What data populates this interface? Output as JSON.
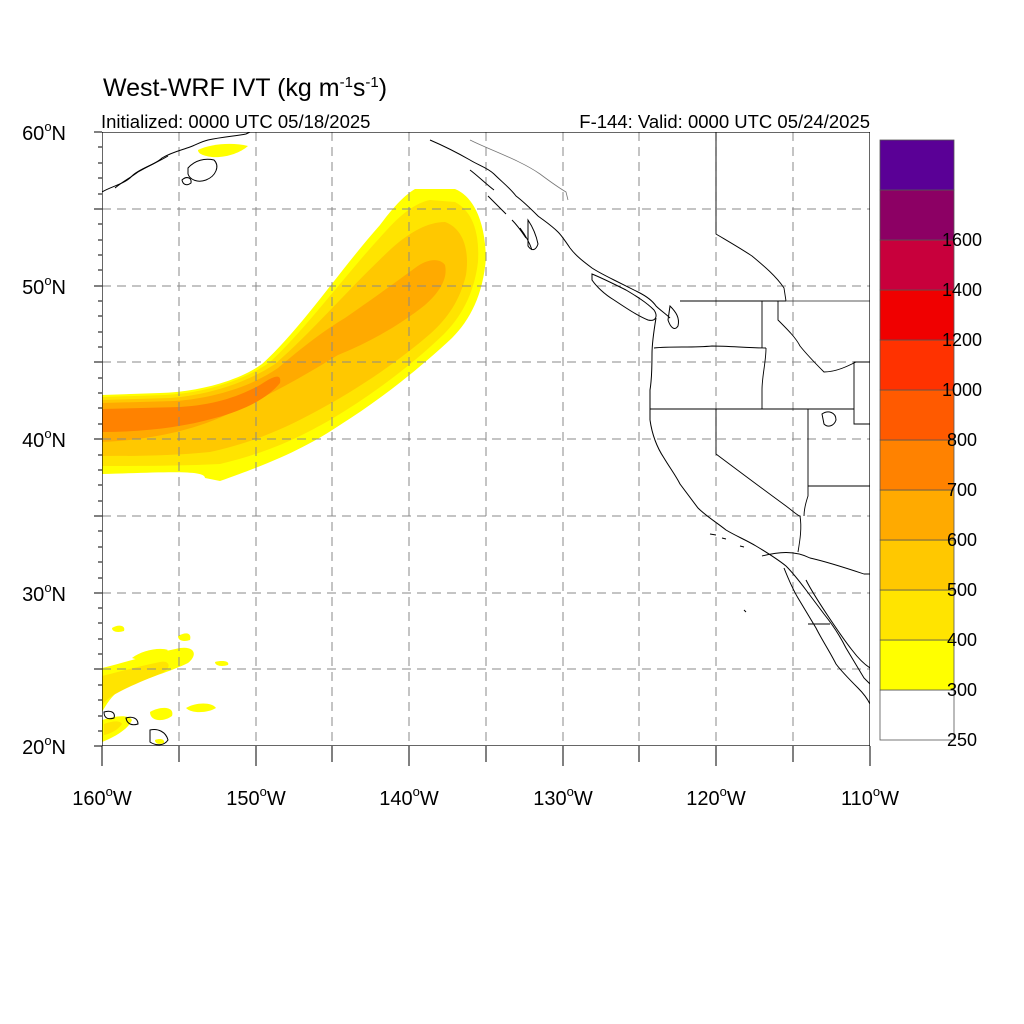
{
  "title": {
    "text": "West-WRF IVT (kg m",
    "units_power1": "-1",
    "middle": "s",
    "units_power2": "-1",
    "close": ")"
  },
  "init_label": "Initialized: 0000 UTC 05/18/2025",
  "valid_label": "F-144: Valid: 0000 UTC 05/24/2025",
  "axes": {
    "lon_range": [
      -160,
      -110
    ],
    "lat_range": [
      20,
      60
    ],
    "lat_ticks": [
      {
        "value": 60,
        "label": "60",
        "hemi": "N"
      },
      {
        "value": 50,
        "label": "50",
        "hemi": "N"
      },
      {
        "value": 40,
        "label": "40",
        "hemi": "N"
      },
      {
        "value": 30,
        "label": "30",
        "hemi": "N"
      },
      {
        "value": 20,
        "label": "20",
        "hemi": "N"
      }
    ],
    "lon_ticks": [
      {
        "value": -160,
        "label": "160",
        "hemi": "W"
      },
      {
        "value": -150,
        "label": "150",
        "hemi": "W"
      },
      {
        "value": -140,
        "label": "140",
        "hemi": "W"
      },
      {
        "value": -130,
        "label": "130",
        "hemi": "W"
      },
      {
        "value": -120,
        "label": "120",
        "hemi": "W"
      },
      {
        "value": -110,
        "label": "110",
        "hemi": "W"
      }
    ],
    "grid_spacing_deg": 5,
    "grid": true,
    "grid_style": "dashed"
  },
  "colorbar": {
    "placement": "right",
    "levels": [
      {
        "label": "250",
        "color": "#ffffff"
      },
      {
        "label": "300",
        "color": "#ffff00"
      },
      {
        "label": "400",
        "color": "#ffe400"
      },
      {
        "label": "500",
        "color": "#ffc800"
      },
      {
        "label": "600",
        "color": "#ffaa00"
      },
      {
        "label": "700",
        "color": "#ff8200"
      },
      {
        "label": "800",
        "color": "#ff5a00"
      },
      {
        "label": "1000",
        "color": "#ff3200"
      },
      {
        "label": "1200",
        "color": "#f00000"
      },
      {
        "label": "1400",
        "color": "#c8003c"
      },
      {
        "label": "1600",
        "color": "#8c0064"
      },
      {
        "label": "",
        "color": "#5a0096"
      }
    ]
  },
  "chart_data": {
    "type": "heatmap",
    "field": "Integrated water vapor transport",
    "atmospheric_river_axis": [
      {
        "lon": -160,
        "lat": 41.5,
        "ivt": 650
      },
      {
        "lon": -155,
        "lat": 41.8,
        "ivt": 700
      },
      {
        "lon": -150,
        "lat": 42.5,
        "ivt": 650
      },
      {
        "lon": -145,
        "lat": 45.5,
        "ivt": 550
      },
      {
        "lon": -140,
        "lat": 49.5,
        "ivt": 500
      },
      {
        "lon": -137,
        "lat": 54.0,
        "ivt": 350
      }
    ]
  }
}
